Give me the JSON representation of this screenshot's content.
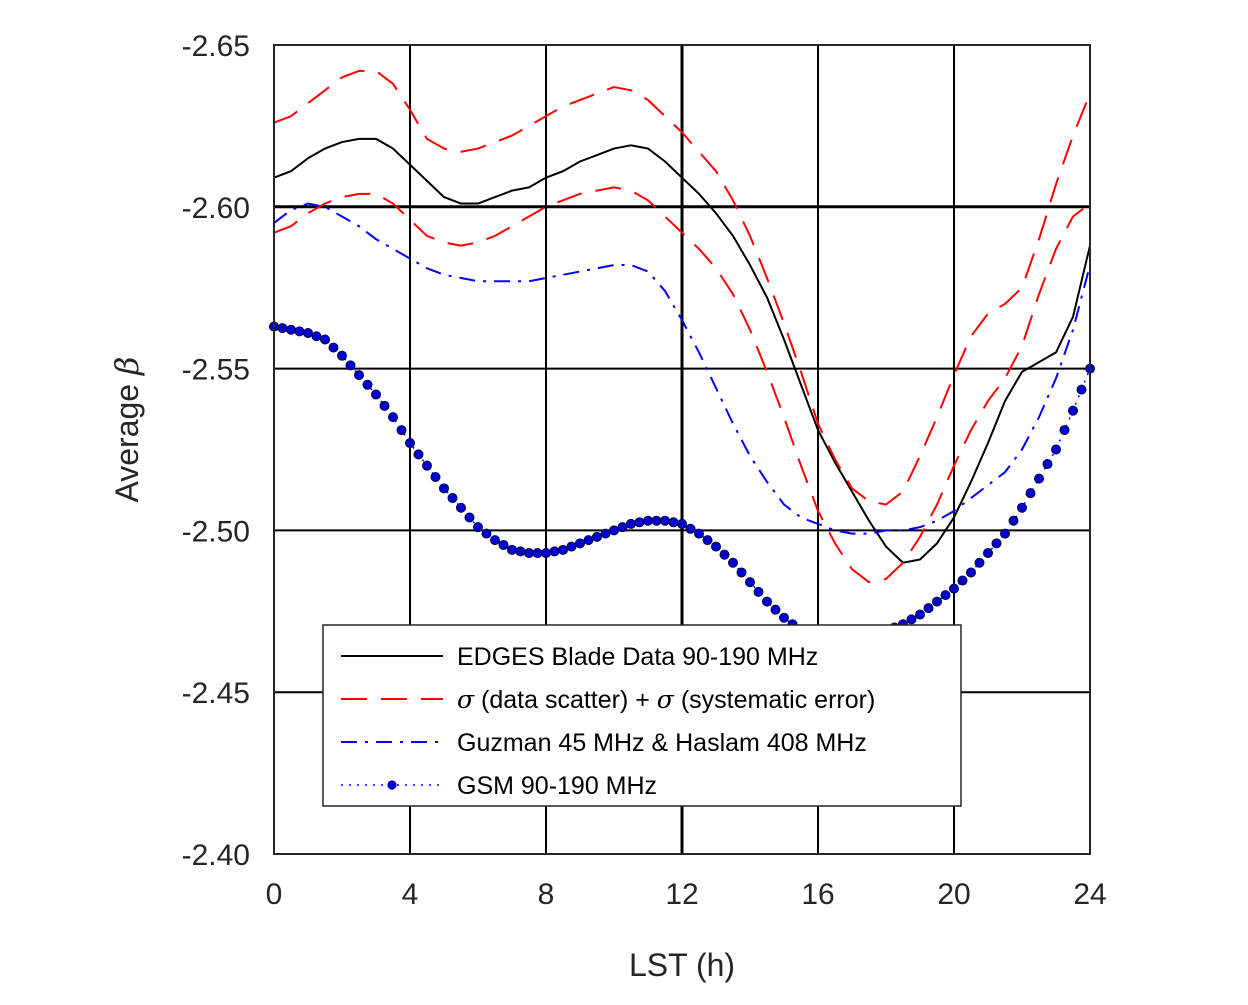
{
  "chart_data": {
    "type": "line",
    "xlabel": "LST (h)",
    "ylabel_text": "Average ",
    "ylabel_symbol": "β",
    "xlim": [
      0,
      24
    ],
    "ylim": [
      -2.65,
      -2.4
    ],
    "x_ticks": [
      0,
      4,
      8,
      12,
      16,
      20,
      24
    ],
    "y_ticks": [
      -2.65,
      -2.6,
      -2.55,
      -2.5,
      -2.45,
      -2.4
    ],
    "x_tick_labels": [
      "0",
      "4",
      "8",
      "12",
      "16",
      "20",
      "24"
    ],
    "y_tick_labels": [
      "-2.65",
      "-2.60",
      "-2.55",
      "-2.50",
      "-2.45",
      "-2.40"
    ],
    "emphasized_grid_x": 12,
    "emphasized_grid_y": -2.6,
    "grid": true,
    "legend_position": "bottom-center",
    "y_axis_direction": "reversed",
    "series": [
      {
        "name": "EDGES Blade Data 90-190 MHz",
        "color": "#000000",
        "style": "solid",
        "x": [
          0,
          0.5,
          1,
          1.5,
          2,
          2.5,
          3,
          3.5,
          4,
          4.5,
          5,
          5.5,
          6,
          6.5,
          7,
          7.5,
          8,
          8.5,
          9,
          9.5,
          10,
          10.5,
          11,
          11.5,
          12,
          12.5,
          13,
          13.5,
          14,
          14.5,
          15,
          15.5,
          16,
          16.5,
          17,
          17.5,
          18,
          18.5,
          19,
          19.5,
          20,
          20.5,
          21,
          21.5,
          22,
          22.5,
          23,
          23.5,
          24
        ],
        "y": [
          -2.609,
          -2.611,
          -2.615,
          -2.618,
          -2.62,
          -2.621,
          -2.621,
          -2.618,
          -2.613,
          -2.608,
          -2.603,
          -2.601,
          -2.601,
          -2.603,
          -2.605,
          -2.606,
          -2.609,
          -2.611,
          -2.614,
          -2.616,
          -2.618,
          -2.619,
          -2.618,
          -2.614,
          -2.609,
          -2.604,
          -2.598,
          -2.591,
          -2.582,
          -2.572,
          -2.559,
          -2.545,
          -2.531,
          -2.521,
          -2.512,
          -2.503,
          -2.495,
          -2.49,
          -2.491,
          -2.496,
          -2.504,
          -2.515,
          -2.527,
          -2.54,
          -2.549,
          -2.552,
          -2.555,
          -2.566,
          -2.588
        ]
      },
      {
        "name": "σ (data scatter) + σ (systematic error)",
        "color": "#ff0000",
        "style": "dashed",
        "x": [
          0,
          0.5,
          1,
          1.5,
          2,
          2.5,
          3,
          3.5,
          4,
          4.5,
          5,
          5.5,
          6,
          6.5,
          7,
          7.5,
          8,
          8.5,
          9,
          9.5,
          10,
          10.5,
          11,
          11.5,
          12,
          12.5,
          13,
          13.5,
          14,
          14.5,
          15,
          15.5,
          16,
          16.5,
          17,
          17.5,
          18,
          18.5,
          19,
          19.5,
          20,
          20.5,
          21,
          21.5,
          22,
          22.5,
          23,
          23.5,
          24
        ],
        "y": [
          -2.626,
          -2.628,
          -2.632,
          -2.636,
          -2.64,
          -2.642,
          -2.642,
          -2.638,
          -2.63,
          -2.621,
          -2.618,
          -2.617,
          -2.618,
          -2.62,
          -2.622,
          -2.625,
          -2.628,
          -2.631,
          -2.633,
          -2.635,
          -2.637,
          -2.636,
          -2.633,
          -2.628,
          -2.623,
          -2.617,
          -2.611,
          -2.602,
          -2.591,
          -2.578,
          -2.564,
          -2.549,
          -2.533,
          -2.522,
          -2.513,
          -2.509,
          -2.508,
          -2.512,
          -2.523,
          -2.535,
          -2.548,
          -2.56,
          -2.567,
          -2.57,
          -2.575,
          -2.59,
          -2.607,
          -2.622,
          -2.635
        ]
      },
      {
        "name": "",
        "color": "#ff0000",
        "style": "dashed",
        "x": [
          0,
          0.5,
          1,
          1.5,
          2,
          2.5,
          3,
          3.5,
          4,
          4.5,
          5,
          5.5,
          6,
          6.5,
          7,
          7.5,
          8,
          8.5,
          9,
          9.5,
          10,
          10.5,
          11,
          11.5,
          12,
          12.5,
          13,
          13.5,
          14,
          14.5,
          15,
          15.5,
          16,
          16.5,
          17,
          17.5,
          18,
          18.5,
          19,
          19.5,
          20,
          20.5,
          21,
          21.5,
          22,
          22.5,
          23,
          23.5,
          24
        ],
        "y": [
          -2.592,
          -2.594,
          -2.598,
          -2.601,
          -2.603,
          -2.604,
          -2.604,
          -2.601,
          -2.596,
          -2.591,
          -2.589,
          -2.588,
          -2.589,
          -2.591,
          -2.594,
          -2.597,
          -2.6,
          -2.602,
          -2.604,
          -2.605,
          -2.606,
          -2.605,
          -2.602,
          -2.597,
          -2.592,
          -2.587,
          -2.581,
          -2.573,
          -2.562,
          -2.549,
          -2.535,
          -2.52,
          -2.506,
          -2.496,
          -2.488,
          -2.484,
          -2.485,
          -2.49,
          -2.498,
          -2.508,
          -2.52,
          -2.531,
          -2.54,
          -2.547,
          -2.557,
          -2.573,
          -2.587,
          -2.597,
          -2.601
        ]
      },
      {
        "name": "Guzman 45 MHz & Haslam 408 MHz",
        "color": "#0000ff",
        "style": "dashdot",
        "x": [
          0,
          0.5,
          1,
          1.5,
          2,
          2.5,
          3,
          3.5,
          4,
          4.5,
          5,
          5.5,
          6,
          6.5,
          7,
          7.5,
          8,
          8.5,
          9,
          9.5,
          10,
          10.5,
          11,
          11.5,
          12,
          12.5,
          13,
          13.5,
          14,
          14.5,
          15,
          15.5,
          16,
          16.5,
          17,
          17.5,
          18,
          18.5,
          19,
          19.5,
          20,
          20.5,
          21,
          21.5,
          22,
          22.5,
          23,
          23.5,
          24
        ],
        "y": [
          -2.595,
          -2.599,
          -2.601,
          -2.6,
          -2.597,
          -2.594,
          -2.59,
          -2.587,
          -2.584,
          -2.581,
          -2.579,
          -2.578,
          -2.577,
          -2.577,
          -2.577,
          -2.577,
          -2.578,
          -2.579,
          -2.58,
          -2.581,
          -2.582,
          -2.582,
          -2.58,
          -2.574,
          -2.565,
          -2.555,
          -2.544,
          -2.533,
          -2.523,
          -2.515,
          -2.508,
          -2.504,
          -2.502,
          -2.5,
          -2.499,
          -2.499,
          -2.5,
          -2.5,
          -2.501,
          -2.503,
          -2.506,
          -2.51,
          -2.514,
          -2.518,
          -2.525,
          -2.535,
          -2.547,
          -2.562,
          -2.582
        ]
      },
      {
        "name": "GSM 90-190 MHz",
        "color": "#0000ff",
        "marker_color": "#0000cc",
        "style": "dotted-markers",
        "x": [
          0,
          0.5,
          1,
          1.5,
          2,
          2.5,
          3,
          3.5,
          4,
          4.5,
          5,
          5.5,
          6,
          6.5,
          7,
          7.5,
          8,
          8.5,
          9,
          9.5,
          10,
          10.5,
          11,
          11.5,
          12,
          12.5,
          13,
          13.5,
          14,
          14.5,
          15,
          15.5,
          16,
          16.5,
          17,
          17.5,
          18,
          18.5,
          19,
          19.5,
          20,
          20.5,
          21,
          21.5,
          22,
          22.5,
          23,
          23.5,
          24
        ],
        "y": [
          -2.563,
          -2.562,
          -2.561,
          -2.559,
          -2.554,
          -2.548,
          -2.542,
          -2.535,
          -2.527,
          -2.52,
          -2.513,
          -2.507,
          -2.501,
          -2.497,
          -2.494,
          -2.493,
          -2.493,
          -2.494,
          -2.496,
          -2.498,
          -2.5,
          -2.502,
          -2.503,
          -2.503,
          -2.502,
          -2.499,
          -2.495,
          -2.49,
          -2.484,
          -2.478,
          -2.473,
          -2.469,
          -2.467,
          -2.466,
          -2.466,
          -2.467,
          -2.469,
          -2.471,
          -2.474,
          -2.478,
          -2.482,
          -2.487,
          -2.493,
          -2.499,
          -2.507,
          -2.516,
          -2.525,
          -2.537,
          -2.55
        ]
      }
    ]
  }
}
